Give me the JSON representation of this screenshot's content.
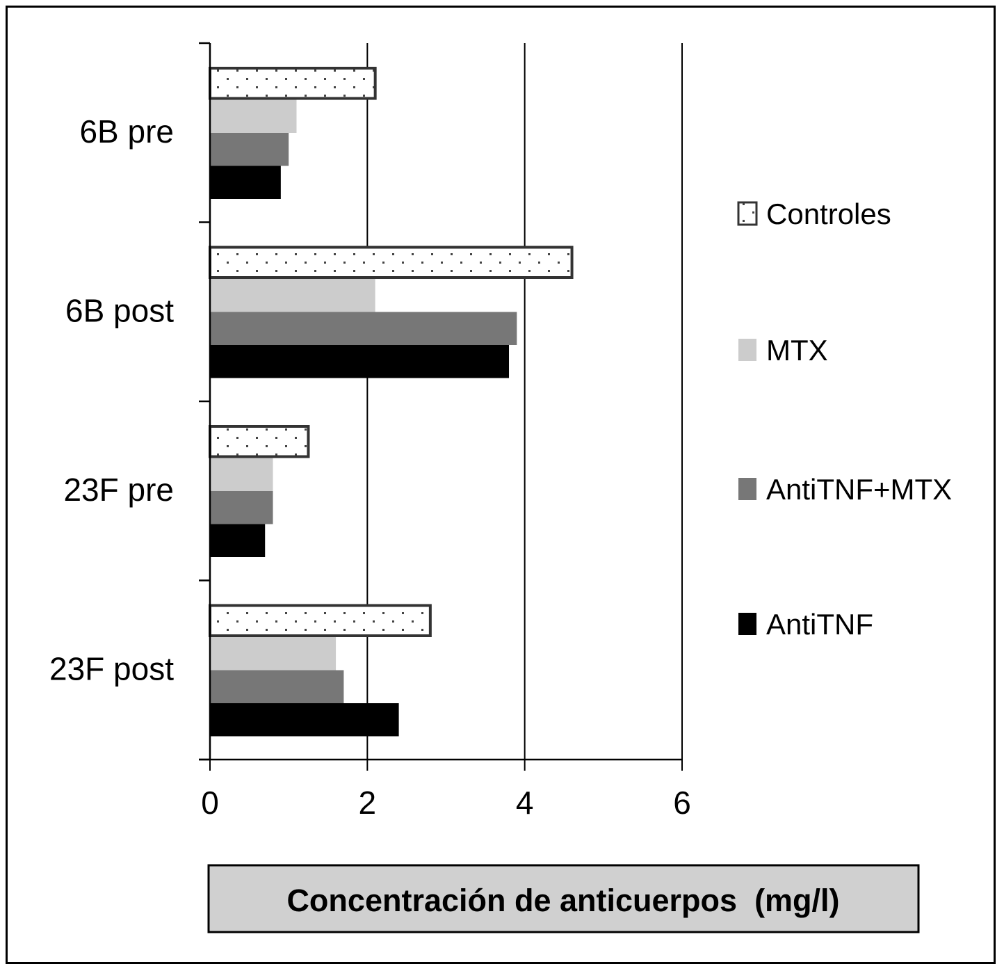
{
  "chart_data": {
    "type": "bar",
    "orientation": "horizontal",
    "categories": [
      "6B pre",
      "6B post",
      "23F pre",
      "23F post"
    ],
    "series": [
      {
        "name": "Controles",
        "color": "#ffffff",
        "pattern": "dotted",
        "values": [
          2.1,
          4.6,
          1.25,
          2.8
        ]
      },
      {
        "name": "MTX",
        "color": "#cccccc",
        "values": [
          1.1,
          2.1,
          0.8,
          1.6
        ]
      },
      {
        "name": "AntiTNF+MTX",
        "color": "#777777",
        "values": [
          1.0,
          3.9,
          0.8,
          1.7
        ]
      },
      {
        "name": "AntiTNF",
        "color": "#000000",
        "values": [
          0.9,
          3.8,
          0.7,
          2.4
        ]
      }
    ],
    "xlabel": "Concentración de anticuerpos  (mg/l)",
    "xlim": [
      0,
      6
    ],
    "xticks": [
      "0",
      "2",
      "4",
      "6"
    ],
    "grid": "vertical",
    "legend": "right"
  }
}
